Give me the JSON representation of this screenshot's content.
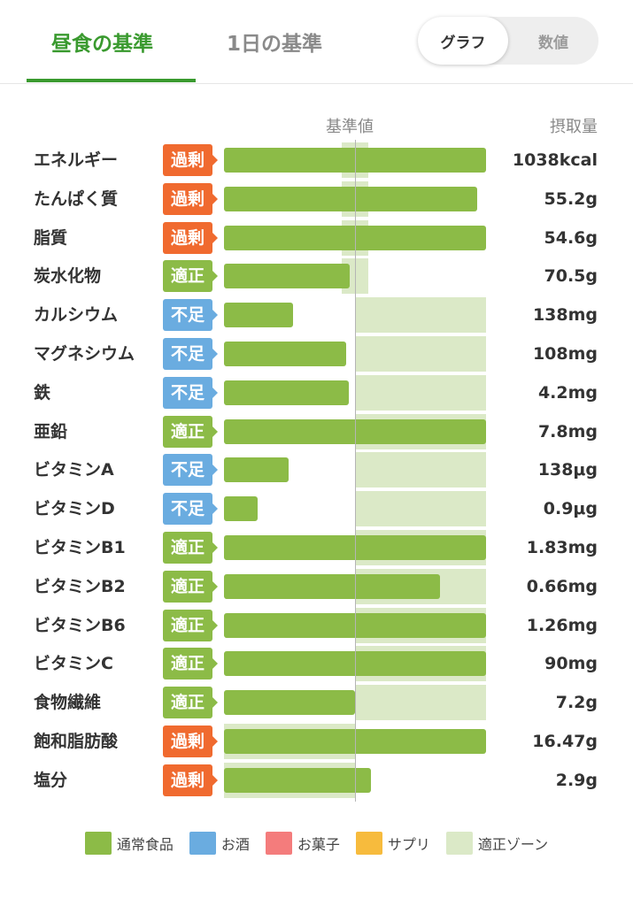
{
  "tabs": {
    "lunch": "昼食の基準",
    "day": "1日の基準"
  },
  "toggle": {
    "graph": "グラフ",
    "values": "数値"
  },
  "chart_data": {
    "type": "bar",
    "header_ref": "基準値",
    "header_intake": "摂取量",
    "status_colors": {
      "過剰": "#f06a2f",
      "適正": "#8cbb47",
      "不足": "#6aace0"
    },
    "rows": [
      {
        "name": "エネルギー",
        "status": "過剰",
        "value": "1038kcal",
        "ratio": 2.0,
        "zone": [
          0.9,
          1.1
        ]
      },
      {
        "name": "たんぱく質",
        "status": "過剰",
        "value": "55.2g",
        "ratio": 1.93,
        "zone": [
          0.9,
          1.1
        ]
      },
      {
        "name": "脂質",
        "status": "過剰",
        "value": "54.6g",
        "ratio": 2.0,
        "zone": [
          0.9,
          1.1
        ]
      },
      {
        "name": "炭水化物",
        "status": "適正",
        "value": "70.5g",
        "ratio": 0.96,
        "zone": [
          0.9,
          1.1
        ]
      },
      {
        "name": "カルシウム",
        "status": "不足",
        "value": "138mg",
        "ratio": 0.53,
        "zone": [
          1.0,
          2.0
        ]
      },
      {
        "name": "マグネシウム",
        "status": "不足",
        "value": "108mg",
        "ratio": 0.93,
        "zone": [
          1.0,
          2.0
        ]
      },
      {
        "name": "鉄",
        "status": "不足",
        "value": "4.2mg",
        "ratio": 0.95,
        "zone": [
          1.0,
          2.0
        ]
      },
      {
        "name": "亜鉛",
        "status": "適正",
        "value": "7.8mg",
        "ratio": 2.0,
        "zone": [
          1.0,
          2.0
        ]
      },
      {
        "name": "ビタミンA",
        "status": "不足",
        "value": "138μg",
        "ratio": 0.49,
        "zone": [
          1.0,
          2.0
        ]
      },
      {
        "name": "ビタミンD",
        "status": "不足",
        "value": "0.9μg",
        "ratio": 0.26,
        "zone": [
          1.0,
          2.0
        ]
      },
      {
        "name": "ビタミンB1",
        "status": "適正",
        "value": "1.83mg",
        "ratio": 2.0,
        "zone": [
          1.0,
          2.0
        ]
      },
      {
        "name": "ビタミンB2",
        "status": "適正",
        "value": "0.66mg",
        "ratio": 1.65,
        "zone": [
          1.0,
          2.0
        ]
      },
      {
        "name": "ビタミンB6",
        "status": "適正",
        "value": "1.26mg",
        "ratio": 2.0,
        "zone": [
          1.0,
          2.0
        ]
      },
      {
        "name": "ビタミンC",
        "status": "適正",
        "value": "90mg",
        "ratio": 2.0,
        "zone": [
          1.0,
          2.0
        ]
      },
      {
        "name": "食物繊維",
        "status": "適正",
        "value": "7.2g",
        "ratio": 1.0,
        "zone": [
          1.0,
          2.0
        ]
      },
      {
        "name": "飽和脂肪酸",
        "status": "過剰",
        "value": "16.47g",
        "ratio": 2.0,
        "zone": [
          0.0,
          1.0
        ]
      },
      {
        "name": "塩分",
        "status": "過剰",
        "value": "2.9g",
        "ratio": 1.12,
        "zone": [
          0.0,
          1.0
        ]
      }
    ],
    "legend": [
      {
        "label": "通常食品",
        "color": "#8cbb47"
      },
      {
        "label": "お酒",
        "color": "#6aace0"
      },
      {
        "label": "お菓子",
        "color": "#f47c7c"
      },
      {
        "label": "サプリ",
        "color": "#f7bb3d"
      },
      {
        "label": "適正ゾーン",
        "color": "#dbe9c7"
      }
    ]
  }
}
